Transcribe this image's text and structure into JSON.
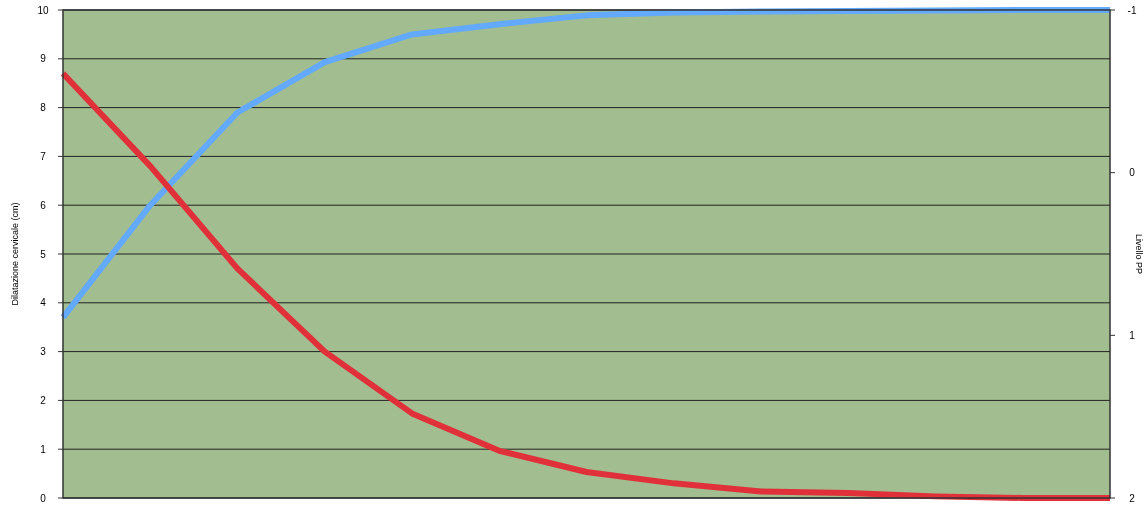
{
  "chart_data": {
    "type": "line",
    "categories": [
      null,
      null,
      null,
      null,
      null,
      null,
      null,
      null,
      null,
      null,
      null,
      null,
      null
    ],
    "ylabel": "Dilatazione cervicale (cm)",
    "y2label": "Livello PP",
    "ylim": [
      0,
      10
    ],
    "yticks": [
      0,
      1,
      2,
      3,
      4,
      5,
      6,
      7,
      8,
      9,
      10
    ],
    "y2lim": [
      2,
      -1
    ],
    "y2ticks": [
      -1,
      0,
      1,
      2
    ],
    "grid": "y",
    "marker": "none",
    "line_style": "solid",
    "series": [
      {
        "color": "#63aaff",
        "values": [
          3.7,
          6.0,
          7.9,
          8.93,
          9.5,
          9.71,
          9.89,
          9.95,
          9.97,
          9.98,
          9.99,
          10,
          10
        ]
      },
      {
        "color": "#e0313a",
        "axis": "y2",
        "values": [
          -0.61,
          -0.04,
          0.59,
          1.1,
          1.48,
          1.71,
          1.84,
          1.91,
          1.96,
          1.97,
          1.99,
          2,
          2
        ]
      }
    ]
  }
}
